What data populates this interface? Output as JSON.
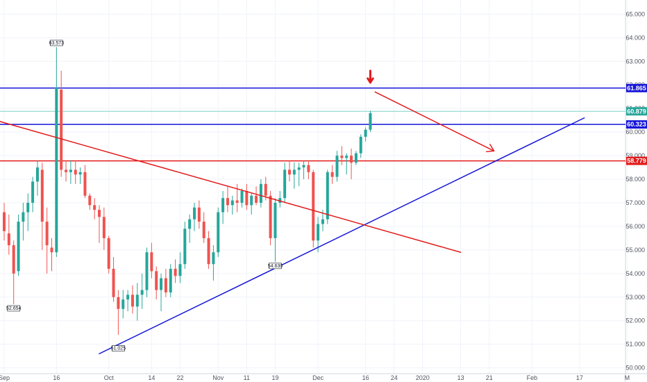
{
  "chart_data": {
    "type": "candlestick",
    "title": "",
    "xlabel": "",
    "ylabel": "",
    "ylim": [
      49.4,
      65.6
    ],
    "y_axis_position": "right",
    "y_ticks": [
      "50.000",
      "51.000",
      "52.000",
      "53.000",
      "54.000",
      "55.000",
      "56.000",
      "57.000",
      "58.000",
      "59.000",
      "60.000",
      "61.000",
      "62.000",
      "63.000",
      "64.000",
      "65.000"
    ],
    "x_ticks": [
      {
        "label": "Sep",
        "index": 0
      },
      {
        "label": "16",
        "index": 11
      },
      {
        "label": "Oct",
        "index": 22
      },
      {
        "label": "14",
        "index": 31
      },
      {
        "label": "22",
        "index": 37
      },
      {
        "label": "Nov",
        "index": 45
      },
      {
        "label": "11",
        "index": 51
      },
      {
        "label": "19",
        "index": 57
      },
      {
        "label": "Dec",
        "index": 66
      },
      {
        "label": "16",
        "index": 76
      },
      {
        "label": "24",
        "index": 82
      },
      {
        "label": "2020",
        "index": 88
      },
      {
        "label": "13",
        "index": 96
      },
      {
        "label": "21",
        "index": 102
      },
      {
        "label": "Feb",
        "index": 111
      },
      {
        "label": "17",
        "index": 121
      },
      {
        "label": "M",
        "index": 131
      }
    ],
    "colors": {
      "up": "#26a69a",
      "down": "#ef5350",
      "blue_line": "#1515d8",
      "red_line": "#e21a1a",
      "thin_line": "#7fd0c8"
    },
    "candles": [
      [
        56.6,
        57.0,
        55.4,
        55.8
      ],
      [
        55.7,
        56.5,
        54.8,
        55.2
      ],
      [
        55.2,
        55.4,
        52.7,
        54.0
      ],
      [
        54.1,
        56.5,
        53.9,
        56.2
      ],
      [
        56.2,
        57.0,
        55.4,
        56.6
      ],
      [
        56.6,
        57.4,
        55.8,
        57.0
      ],
      [
        57.0,
        58.1,
        56.6,
        57.9
      ],
      [
        57.9,
        58.8,
        57.3,
        58.5
      ],
      [
        58.4,
        58.7,
        55.0,
        56.2
      ],
      [
        56.2,
        56.8,
        54.0,
        55.2
      ],
      [
        55.1,
        55.5,
        54.1,
        54.9
      ],
      [
        54.9,
        63.6,
        54.7,
        61.9
      ],
      [
        61.8,
        62.6,
        58.1,
        58.4
      ],
      [
        58.4,
        58.8,
        57.9,
        58.3
      ],
      [
        58.3,
        58.8,
        57.8,
        58.4
      ],
      [
        58.4,
        58.8,
        57.8,
        58.2
      ],
      [
        58.2,
        58.5,
        57.8,
        58.3
      ],
      [
        58.3,
        58.6,
        57.2,
        57.3
      ],
      [
        57.3,
        57.4,
        56.7,
        56.9
      ],
      [
        56.9,
        57.2,
        56.3,
        56.7
      ],
      [
        56.7,
        56.9,
        55.3,
        56.4
      ],
      [
        56.4,
        56.8,
        55.0,
        55.5
      ],
      [
        55.5,
        55.6,
        54.0,
        54.2
      ],
      [
        54.2,
        54.7,
        52.8,
        53.0
      ],
      [
        53.0,
        53.3,
        51.4,
        52.5
      ],
      [
        52.5,
        53.3,
        52.1,
        52.9
      ],
      [
        52.9,
        53.3,
        52.4,
        53.1
      ],
      [
        53.1,
        53.5,
        52.3,
        52.6
      ],
      [
        52.6,
        53.6,
        52.0,
        53.1
      ],
      [
        53.1,
        54.0,
        52.5,
        53.3
      ],
      [
        53.3,
        55.1,
        53.0,
        54.9
      ],
      [
        54.9,
        55.3,
        53.8,
        54.1
      ],
      [
        54.1,
        54.3,
        52.9,
        53.3
      ],
      [
        53.3,
        54.0,
        52.4,
        53.8
      ],
      [
        53.8,
        54.2,
        53.0,
        53.2
      ],
      [
        53.2,
        54.4,
        53.0,
        54.2
      ],
      [
        54.2,
        54.6,
        53.6,
        53.9
      ],
      [
        53.9,
        54.9,
        53.6,
        54.4
      ],
      [
        54.4,
        56.2,
        54.2,
        55.9
      ],
      [
        55.9,
        56.5,
        55.3,
        56.3
      ],
      [
        56.3,
        57.0,
        55.8,
        56.8
      ],
      [
        56.8,
        57.1,
        55.9,
        56.2
      ],
      [
        56.2,
        56.6,
        55.3,
        55.5
      ],
      [
        55.5,
        55.8,
        54.2,
        54.4
      ],
      [
        54.4,
        55.2,
        53.7,
        54.9
      ],
      [
        54.9,
        56.8,
        54.7,
        56.6
      ],
      [
        56.6,
        57.5,
        56.1,
        57.2
      ],
      [
        57.2,
        57.7,
        56.6,
        56.9
      ],
      [
        56.9,
        57.3,
        56.5,
        57.1
      ],
      [
        57.1,
        57.8,
        56.6,
        57.0
      ],
      [
        57.0,
        57.6,
        56.8,
        57.5
      ],
      [
        57.5,
        57.8,
        56.7,
        56.9
      ],
      [
        56.9,
        57.4,
        56.5,
        57.3
      ],
      [
        57.3,
        57.7,
        56.9,
        57.0
      ],
      [
        57.0,
        58.0,
        56.8,
        57.8
      ],
      [
        57.8,
        58.1,
        57.1,
        57.3
      ],
      [
        57.3,
        57.5,
        55.2,
        55.5
      ],
      [
        55.5,
        57.2,
        54.5,
        57.0
      ],
      [
        57.0,
        57.5,
        56.8,
        57.2
      ],
      [
        57.2,
        58.7,
        57.0,
        58.4
      ],
      [
        58.4,
        58.8,
        57.9,
        58.2
      ],
      [
        58.2,
        58.7,
        57.6,
        58.4
      ],
      [
        58.4,
        58.7,
        57.7,
        58.5
      ],
      [
        58.5,
        58.8,
        58.0,
        58.6
      ],
      [
        58.6,
        58.8,
        58.0,
        58.3
      ],
      [
        58.3,
        58.4,
        55.1,
        55.4
      ],
      [
        55.4,
        56.4,
        54.9,
        56.1
      ],
      [
        56.1,
        56.7,
        55.8,
        56.3
      ],
      [
        56.3,
        58.4,
        56.1,
        58.3
      ],
      [
        58.3,
        58.6,
        57.8,
        58.1
      ],
      [
        58.1,
        59.2,
        57.9,
        59.0
      ],
      [
        59.0,
        59.4,
        58.6,
        58.9
      ],
      [
        58.9,
        59.1,
        58.2,
        59.0
      ],
      [
        59.0,
        59.3,
        58.0,
        58.7
      ],
      [
        58.7,
        59.2,
        58.6,
        59.1
      ],
      [
        59.1,
        59.9,
        58.9,
        59.8
      ],
      [
        59.8,
        60.2,
        59.6,
        60.1
      ],
      [
        60.1,
        60.9,
        60.0,
        60.8
      ]
    ],
    "levels": [
      {
        "label": "61.865",
        "value": 61.865,
        "color": "#1515d8"
      },
      {
        "label": "60.323",
        "value": 60.323,
        "color": "#1515d8"
      },
      {
        "label": "58.779",
        "value": 58.779,
        "color": "#e21a1a"
      },
      {
        "label": "60.879",
        "value": 60.879,
        "color": "#26a69a"
      }
    ],
    "annotations": [
      {
        "label": "63.573",
        "type": "swing-high"
      },
      {
        "label": "52.654",
        "type": "swing-low"
      },
      {
        "label": "51.025",
        "type": "swing-low"
      },
      {
        "label": "54.630",
        "type": "swing-low"
      }
    ],
    "trendlines": [
      {
        "name": "blue-rising-trendline",
        "color": "#1515d8",
        "from": [
          20,
          50.6
        ],
        "to": [
          122,
          60.6
        ]
      },
      {
        "name": "red-falling-trendline",
        "color": "#e21a1a",
        "from": [
          -1.8,
          60.5
        ],
        "to": [
          96,
          54.9
        ]
      },
      {
        "name": "red-projection-arrow",
        "color": "#e21a1a",
        "from": [
          78,
          61.7
        ],
        "to": [
          103,
          59.2
        ]
      },
      {
        "name": "red-down-marker",
        "color": "#e21a1a",
        "from": [
          77,
          62.6
        ],
        "to": [
          77,
          62.1
        ]
      }
    ]
  }
}
